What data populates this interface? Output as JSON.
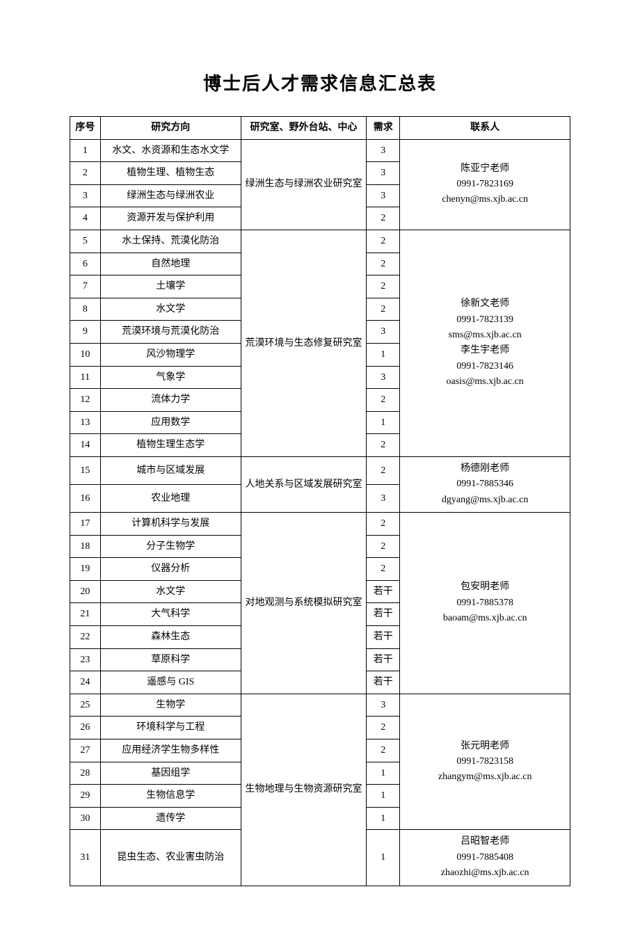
{
  "title": "博士后人才需求信息汇总表",
  "columns": {
    "idx": "序号",
    "direction": "研究方向",
    "lab": "研究室、野外台站、中心",
    "need": "需求",
    "contact": "联系人"
  },
  "groups": [
    {
      "lab": "绿洲生态与绿洲农业研究室",
      "contact_name": "陈亚宁老师",
      "contact_phone": "0991-7823169",
      "contact_email": "chenyn@ms.xjb.ac.cn",
      "rows": [
        {
          "idx": "1",
          "direction": "水文、水资源和生态水文学",
          "need": "3"
        },
        {
          "idx": "2",
          "direction": "植物生理、植物生态",
          "need": "3"
        },
        {
          "idx": "3",
          "direction": "绿洲生态与绿洲农业",
          "need": "3"
        },
        {
          "idx": "4",
          "direction": "资源开发与保护利用",
          "need": "2"
        }
      ]
    },
    {
      "lab": "荒漠环境与生态修复研究室",
      "contact_name": "徐新文老师",
      "contact_phone": "0991-7823139",
      "contact_email": "sms@ms.xjb.ac.cn",
      "contact_name2": "李生宇老师",
      "contact_phone2": "0991-7823146",
      "contact_email2": "oasis@ms.xjb.ac.cn",
      "rows": [
        {
          "idx": "5",
          "direction": "水土保持、荒漠化防治",
          "need": "2"
        },
        {
          "idx": "6",
          "direction": "自然地理",
          "need": "2"
        },
        {
          "idx": "7",
          "direction": "土壤学",
          "need": "2"
        },
        {
          "idx": "8",
          "direction": "水文学",
          "need": "2"
        },
        {
          "idx": "9",
          "direction": "荒漠环境与荒漠化防治",
          "need": "3"
        },
        {
          "idx": "10",
          "direction": "风沙物理学",
          "need": "1"
        },
        {
          "idx": "11",
          "direction": "气象学",
          "need": "3"
        },
        {
          "idx": "12",
          "direction": "流体力学",
          "need": "2"
        },
        {
          "idx": "13",
          "direction": "应用数学",
          "need": "1"
        },
        {
          "idx": "14",
          "direction": "植物生理生态学",
          "need": "2"
        }
      ]
    },
    {
      "lab": "人地关系与区域发展研究室",
      "contact_name": "杨德刚老师",
      "contact_phone": "0991-7885346",
      "contact_email": "dgyang@ms.xjb.ac.cn",
      "rows": [
        {
          "idx": "15",
          "direction": "城市与区域发展",
          "need": "2"
        },
        {
          "idx": "16",
          "direction": "农业地理",
          "need": "3"
        }
      ]
    },
    {
      "lab": "对地观测与系统模拟研究室",
      "contact_name": "包安明老师",
      "contact_phone": "0991-7885378",
      "contact_email": "baoam@ms.xjb.ac.cn",
      "rows": [
        {
          "idx": "17",
          "direction": "计算机科学与发展",
          "need": "2"
        },
        {
          "idx": "18",
          "direction": "分子生物学",
          "need": "2"
        },
        {
          "idx": "19",
          "direction": "仪器分析",
          "need": "2"
        },
        {
          "idx": "20",
          "direction": "水文学",
          "need": "若干"
        },
        {
          "idx": "21",
          "direction": "大气科学",
          "need": "若干"
        },
        {
          "idx": "22",
          "direction": "森林生态",
          "need": "若干"
        },
        {
          "idx": "23",
          "direction": "草原科学",
          "need": "若干"
        },
        {
          "idx": "24",
          "direction": "遥感与 GIS",
          "need": "若干"
        }
      ]
    },
    {
      "lab": "生物地理与生物资源研究室",
      "contact_name": "张元明老师",
      "contact_phone": "0991-7823158",
      "contact_email": "zhangym@ms.xjb.ac.cn",
      "sub_contact_name": "吕昭智老师",
      "sub_contact_phone": "0991-7885408",
      "sub_contact_email": "zhaozhi@ms.xjb.ac.cn",
      "rows": [
        {
          "idx": "25",
          "direction": "生物学",
          "need": "3"
        },
        {
          "idx": "26",
          "direction": "环境科学与工程",
          "need": "2"
        },
        {
          "idx": "27",
          "direction": "应用经济学生物多样性",
          "need": "2"
        },
        {
          "idx": "28",
          "direction": "基因组学",
          "need": "1"
        },
        {
          "idx": "29",
          "direction": "生物信息学",
          "need": "1"
        },
        {
          "idx": "30",
          "direction": "遗传学",
          "need": "1"
        },
        {
          "idx": "31",
          "direction": "昆虫生态、农业害虫防治",
          "need": "1"
        }
      ]
    }
  ]
}
